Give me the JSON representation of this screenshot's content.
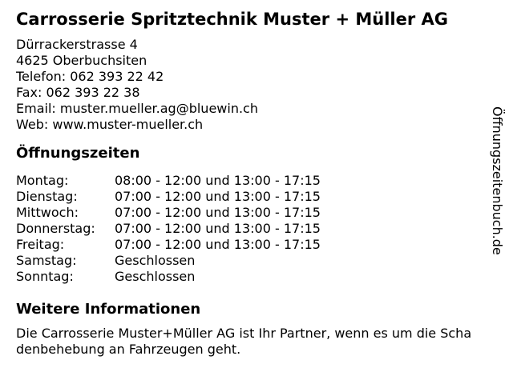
{
  "business": {
    "name": "Carrosserie Spritztechnik Muster + Müller AG",
    "contact_lines": [
      "Dürrackerstrasse 4",
      "4625 Oberbuchsiten",
      "Telefon: 062 393 22 42",
      "Fax: 062 393 22 38",
      "Email: muster.mueller.ag@bluewin.ch",
      "Web: www.muster-mueller.ch"
    ]
  },
  "opening_hours": {
    "heading": "Öffnungszeiten",
    "rows": [
      {
        "day": "Montag:",
        "hours": "08:00 - 12:00 und 13:00 - 17:15"
      },
      {
        "day": "Dienstag:",
        "hours": "07:00 - 12:00 und 13:00 - 17:15"
      },
      {
        "day": "Mittwoch:",
        "hours": "07:00 - 12:00 und 13:00 - 17:15"
      },
      {
        "day": "Donnerstag:",
        "hours": "07:00 - 12:00 und 13:00 - 17:15"
      },
      {
        "day": "Freitag:",
        "hours": "07:00 - 12:00 und 13:00 - 17:15"
      },
      {
        "day": "Samstag:",
        "hours": "Geschlossen"
      },
      {
        "day": "Sonntag:",
        "hours": "Geschlossen"
      }
    ]
  },
  "more_info": {
    "heading": "Weitere Informationen",
    "text_line1": "Die Carrosserie Muster+Müller AG ist Ihr Partner, wenn es um die Scha",
    "text_line2": "denbehebung an Fahrzeugen geht."
  },
  "watermark": {
    "label": "Öffnungszeitenbuch.de"
  },
  "colors": {
    "text": "#000000",
    "background": "#ffffff"
  }
}
